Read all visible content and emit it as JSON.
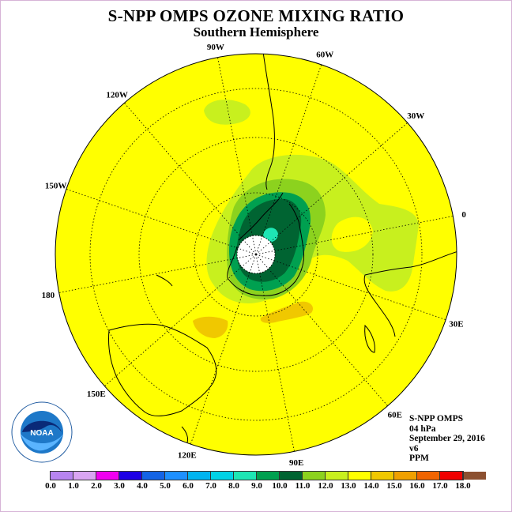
{
  "title": "S-NPP OMPS OZONE MIXING RATIO",
  "subtitle": "Southern Hemisphere",
  "longitude_labels": [
    "0",
    "30E",
    "60E",
    "90E",
    "120E",
    "150E",
    "180",
    "150W",
    "120W",
    "90W",
    "60W",
    "30W"
  ],
  "info": {
    "instrument": "S-NPP OMPS",
    "level": "04 hPa",
    "date": "September 29, 2016",
    "version": "v6",
    "units": "PPM"
  },
  "logo_text": "NOAA",
  "colorbar": {
    "tick_labels": [
      "0.0",
      "1.0",
      "2.0",
      "3.0",
      "4.0",
      "5.0",
      "6.0",
      "7.0",
      "8.0",
      "9.0",
      "10.0",
      "11.0",
      "12.0",
      "13.0",
      "14.0",
      "15.0",
      "16.0",
      "17.0",
      "18.0"
    ],
    "colors": [
      "#b784f0",
      "#d9a5f2",
      "#f000f0",
      "#1e00e6",
      "#1464e6",
      "#1e90ff",
      "#00b4f0",
      "#00d2e6",
      "#1ee6b4",
      "#00a050",
      "#006432",
      "#8cd21e",
      "#c8f01e",
      "#ffff00",
      "#f0c800",
      "#f0a000",
      "#f06400",
      "#f00000",
      "#8c5030"
    ]
  },
  "map_colors": {
    "background": "#ffff00",
    "ring_11": "#8cd21e",
    "ring_12": "#c8f01e",
    "ring_8": "#00a050",
    "ring_9": "#006432",
    "cyan_8": "#1ee6b4",
    "orange_13": "#f0c800",
    "graticule": "#000000",
    "coast": "#000000"
  }
}
